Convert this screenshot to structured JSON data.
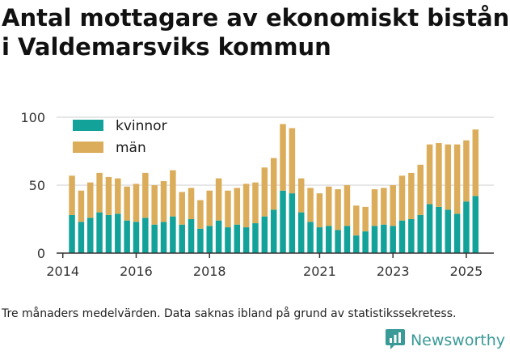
{
  "title_line1": "Antal mottagare av ekonomiskt bistånd",
  "title_line2": "i Valdemarsviks kommun",
  "caption": "Tre månaders medelvärden. Data saknas ibland på grund av statistikssekretess.",
  "brand": {
    "name": "Newsworthy",
    "icon": "newsworthy-logo-icon",
    "color": "#3a9a97"
  },
  "colors": {
    "kvinnor": "#13a29a",
    "man": "#dbad5a",
    "axis": "#333333",
    "grid": "#cccccc"
  },
  "chart_data": {
    "type": "bar",
    "stacked": true,
    "title": "Antal mottagare av ekonomiskt bistånd i Valdemarsviks kommun",
    "xlabel": "",
    "ylabel": "",
    "ylim": [
      0,
      100
    ],
    "yticks": [
      0,
      50,
      100
    ],
    "xlim": [
      2013.83,
      2025.75
    ],
    "xticks": [
      2014,
      2016,
      2018,
      2021,
      2023,
      2025
    ],
    "grid": "horizontal",
    "legend": {
      "position": "top-left",
      "entries": [
        "kvinnor",
        "män"
      ]
    },
    "x": [
      2014.25,
      2014.5,
      2014.75,
      2015.0,
      2015.25,
      2015.5,
      2015.75,
      2016.0,
      2016.25,
      2016.5,
      2016.75,
      2017.0,
      2017.25,
      2017.5,
      2017.75,
      2018.0,
      2018.25,
      2018.5,
      2018.75,
      2019.0,
      2019.25,
      2019.5,
      2019.75,
      2020.0,
      2020.25,
      2020.5,
      2020.75,
      2021.0,
      2021.25,
      2021.5,
      2021.75,
      2022.0,
      2022.25,
      2022.5,
      2022.75,
      2023.0,
      2023.25,
      2023.5,
      2023.75,
      2024.0,
      2024.25,
      2024.5,
      2024.75,
      2025.0,
      2025.25
    ],
    "series": [
      {
        "name": "kvinnor",
        "values": [
          28,
          23,
          26,
          30,
          28,
          29,
          24,
          23,
          26,
          21,
          23,
          27,
          21,
          25,
          18,
          20,
          24,
          19,
          21,
          19,
          22,
          27,
          32,
          46,
          44,
          30,
          23,
          19,
          20,
          17,
          20,
          13,
          16,
          20,
          21,
          20,
          24,
          25,
          28,
          36,
          34,
          32,
          29,
          38,
          42
        ]
      },
      {
        "name": "män",
        "values": [
          29,
          23,
          26,
          29,
          28,
          26,
          25,
          28,
          33,
          29,
          30,
          34,
          24,
          23,
          21,
          26,
          31,
          27,
          27,
          32,
          30,
          36,
          38,
          49,
          48,
          25,
          25,
          25,
          29,
          30,
          30,
          22,
          18,
          27,
          27,
          30,
          33,
          34,
          37,
          44,
          47,
          48,
          51,
          45,
          49
        ]
      }
    ]
  }
}
